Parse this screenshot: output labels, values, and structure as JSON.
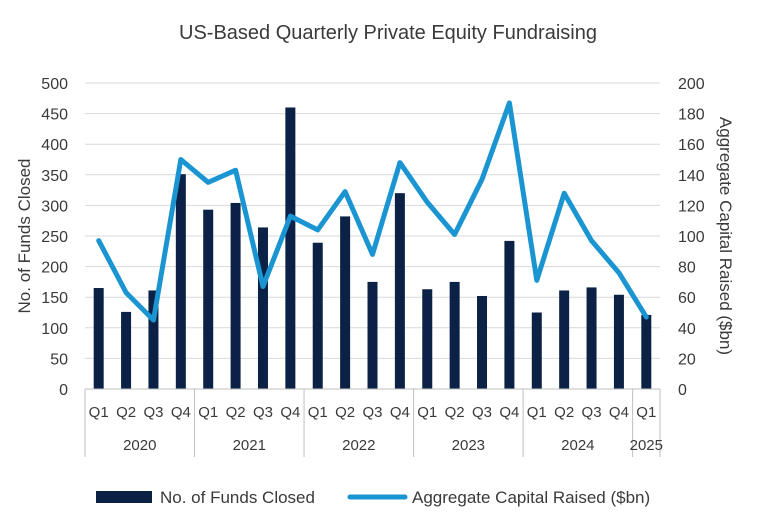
{
  "chart_data": {
    "type": "bar",
    "title": "US-Based Quarterly Private Equity Fundraising",
    "ylabel": "No. of Funds Closed",
    "y2label": "Aggregate Capital Raised ($bn)",
    "ylim": [
      0,
      500
    ],
    "y2lim": [
      0,
      200
    ],
    "yticks": [
      0,
      50,
      100,
      150,
      200,
      250,
      300,
      350,
      400,
      450,
      500
    ],
    "y2ticks": [
      0,
      20,
      40,
      60,
      80,
      100,
      120,
      140,
      160,
      180,
      200
    ],
    "categories": [
      "Q1",
      "Q2",
      "Q3",
      "Q4",
      "Q1",
      "Q2",
      "Q3",
      "Q4",
      "Q1",
      "Q2",
      "Q3",
      "Q4",
      "Q1",
      "Q2",
      "Q3",
      "Q4",
      "Q1",
      "Q2",
      "Q3",
      "Q4",
      "Q1"
    ],
    "year_groups": [
      {
        "label": "2020",
        "count": 4
      },
      {
        "label": "2021",
        "count": 4
      },
      {
        "label": "2022",
        "count": 4
      },
      {
        "label": "2023",
        "count": 4
      },
      {
        "label": "2024",
        "count": 4
      },
      {
        "label": "2025",
        "count": 1
      }
    ],
    "grid": true,
    "legend_position": "bottom",
    "series": [
      {
        "name": "No. of Funds Closed",
        "type": "bar",
        "axis": "left",
        "color": "#0b2145",
        "values": [
          165,
          126,
          161,
          351,
          293,
          304,
          264,
          460,
          239,
          282,
          175,
          320,
          163,
          175,
          152,
          242,
          125,
          161,
          166,
          154,
          121
        ]
      },
      {
        "name": "Aggregate Capital Raised ($bn)",
        "type": "line",
        "axis": "right",
        "color": "#1b95d2",
        "values": [
          97,
          63,
          45,
          150,
          135,
          143,
          67,
          113,
          104,
          129,
          88,
          148,
          122,
          101,
          137,
          187,
          71,
          128,
          97,
          76,
          47
        ]
      }
    ]
  }
}
